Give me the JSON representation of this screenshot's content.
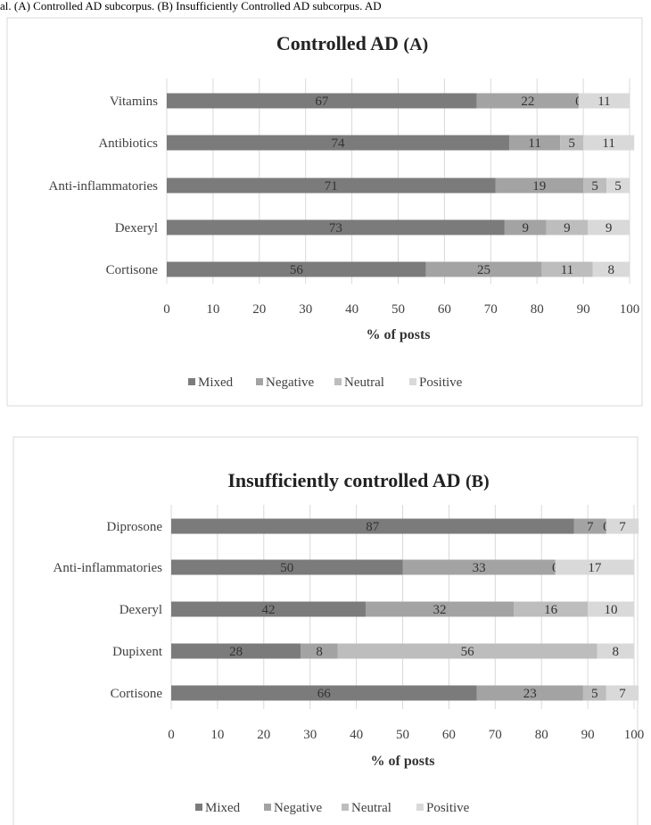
{
  "caption": "al. (A) Controlled AD subcorpus. (B) Insufficiently Controlled AD subcorpus. AD",
  "chart_data": [
    {
      "type": "bar",
      "orientation": "horizontal",
      "stacked": true,
      "title": "Controlled AD",
      "title_tag": "(A)",
      "xlabel": "% of posts",
      "xlim": [
        0,
        100
      ],
      "xticks": [
        0,
        10,
        20,
        30,
        40,
        50,
        60,
        70,
        80,
        90,
        100
      ],
      "categories": [
        "Vitamins",
        "Antibiotics",
        "Anti-inflammatories",
        "Dexeryl",
        "Cortisone"
      ],
      "series": [
        {
          "name": "Mixed",
          "values": [
            67,
            74,
            71,
            73,
            56
          ]
        },
        {
          "name": "Negative",
          "values": [
            22,
            11,
            19,
            9,
            25
          ]
        },
        {
          "name": "Neutral",
          "values": [
            0,
            5,
            5,
            9,
            11
          ]
        },
        {
          "name": "Positive",
          "values": [
            11,
            11,
            5,
            9,
            8
          ]
        }
      ],
      "legend": "bottom",
      "grid": true
    },
    {
      "type": "bar",
      "orientation": "horizontal",
      "stacked": true,
      "title": "Insufficiently  controlled AD",
      "title_tag": "(B)",
      "xlabel": "% of posts",
      "xlim": [
        0,
        100
      ],
      "xticks": [
        0,
        10,
        20,
        30,
        40,
        50,
        60,
        70,
        80,
        90,
        100
      ],
      "categories": [
        "Diprosone",
        "Anti-inflammatories",
        "Dexeryl",
        "Dupixent",
        "Cortisone"
      ],
      "series": [
        {
          "name": "Mixed",
          "values": [
            87,
            50,
            42,
            28,
            66
          ]
        },
        {
          "name": "Negative",
          "values": [
            7,
            33,
            32,
            8,
            23
          ]
        },
        {
          "name": "Neutral",
          "values": [
            0,
            0,
            16,
            56,
            5
          ]
        },
        {
          "name": "Positive",
          "values": [
            7,
            17,
            10,
            8,
            7
          ]
        }
      ],
      "legend": "bottom",
      "grid": true
    }
  ],
  "colors": {
    "Mixed": "#7b7b7b",
    "Negative": "#a3a3a3",
    "Neutral": "#bdbdbd",
    "Positive": "#d9d9d9",
    "frame": "#d9d9d9",
    "text": "#404040"
  }
}
